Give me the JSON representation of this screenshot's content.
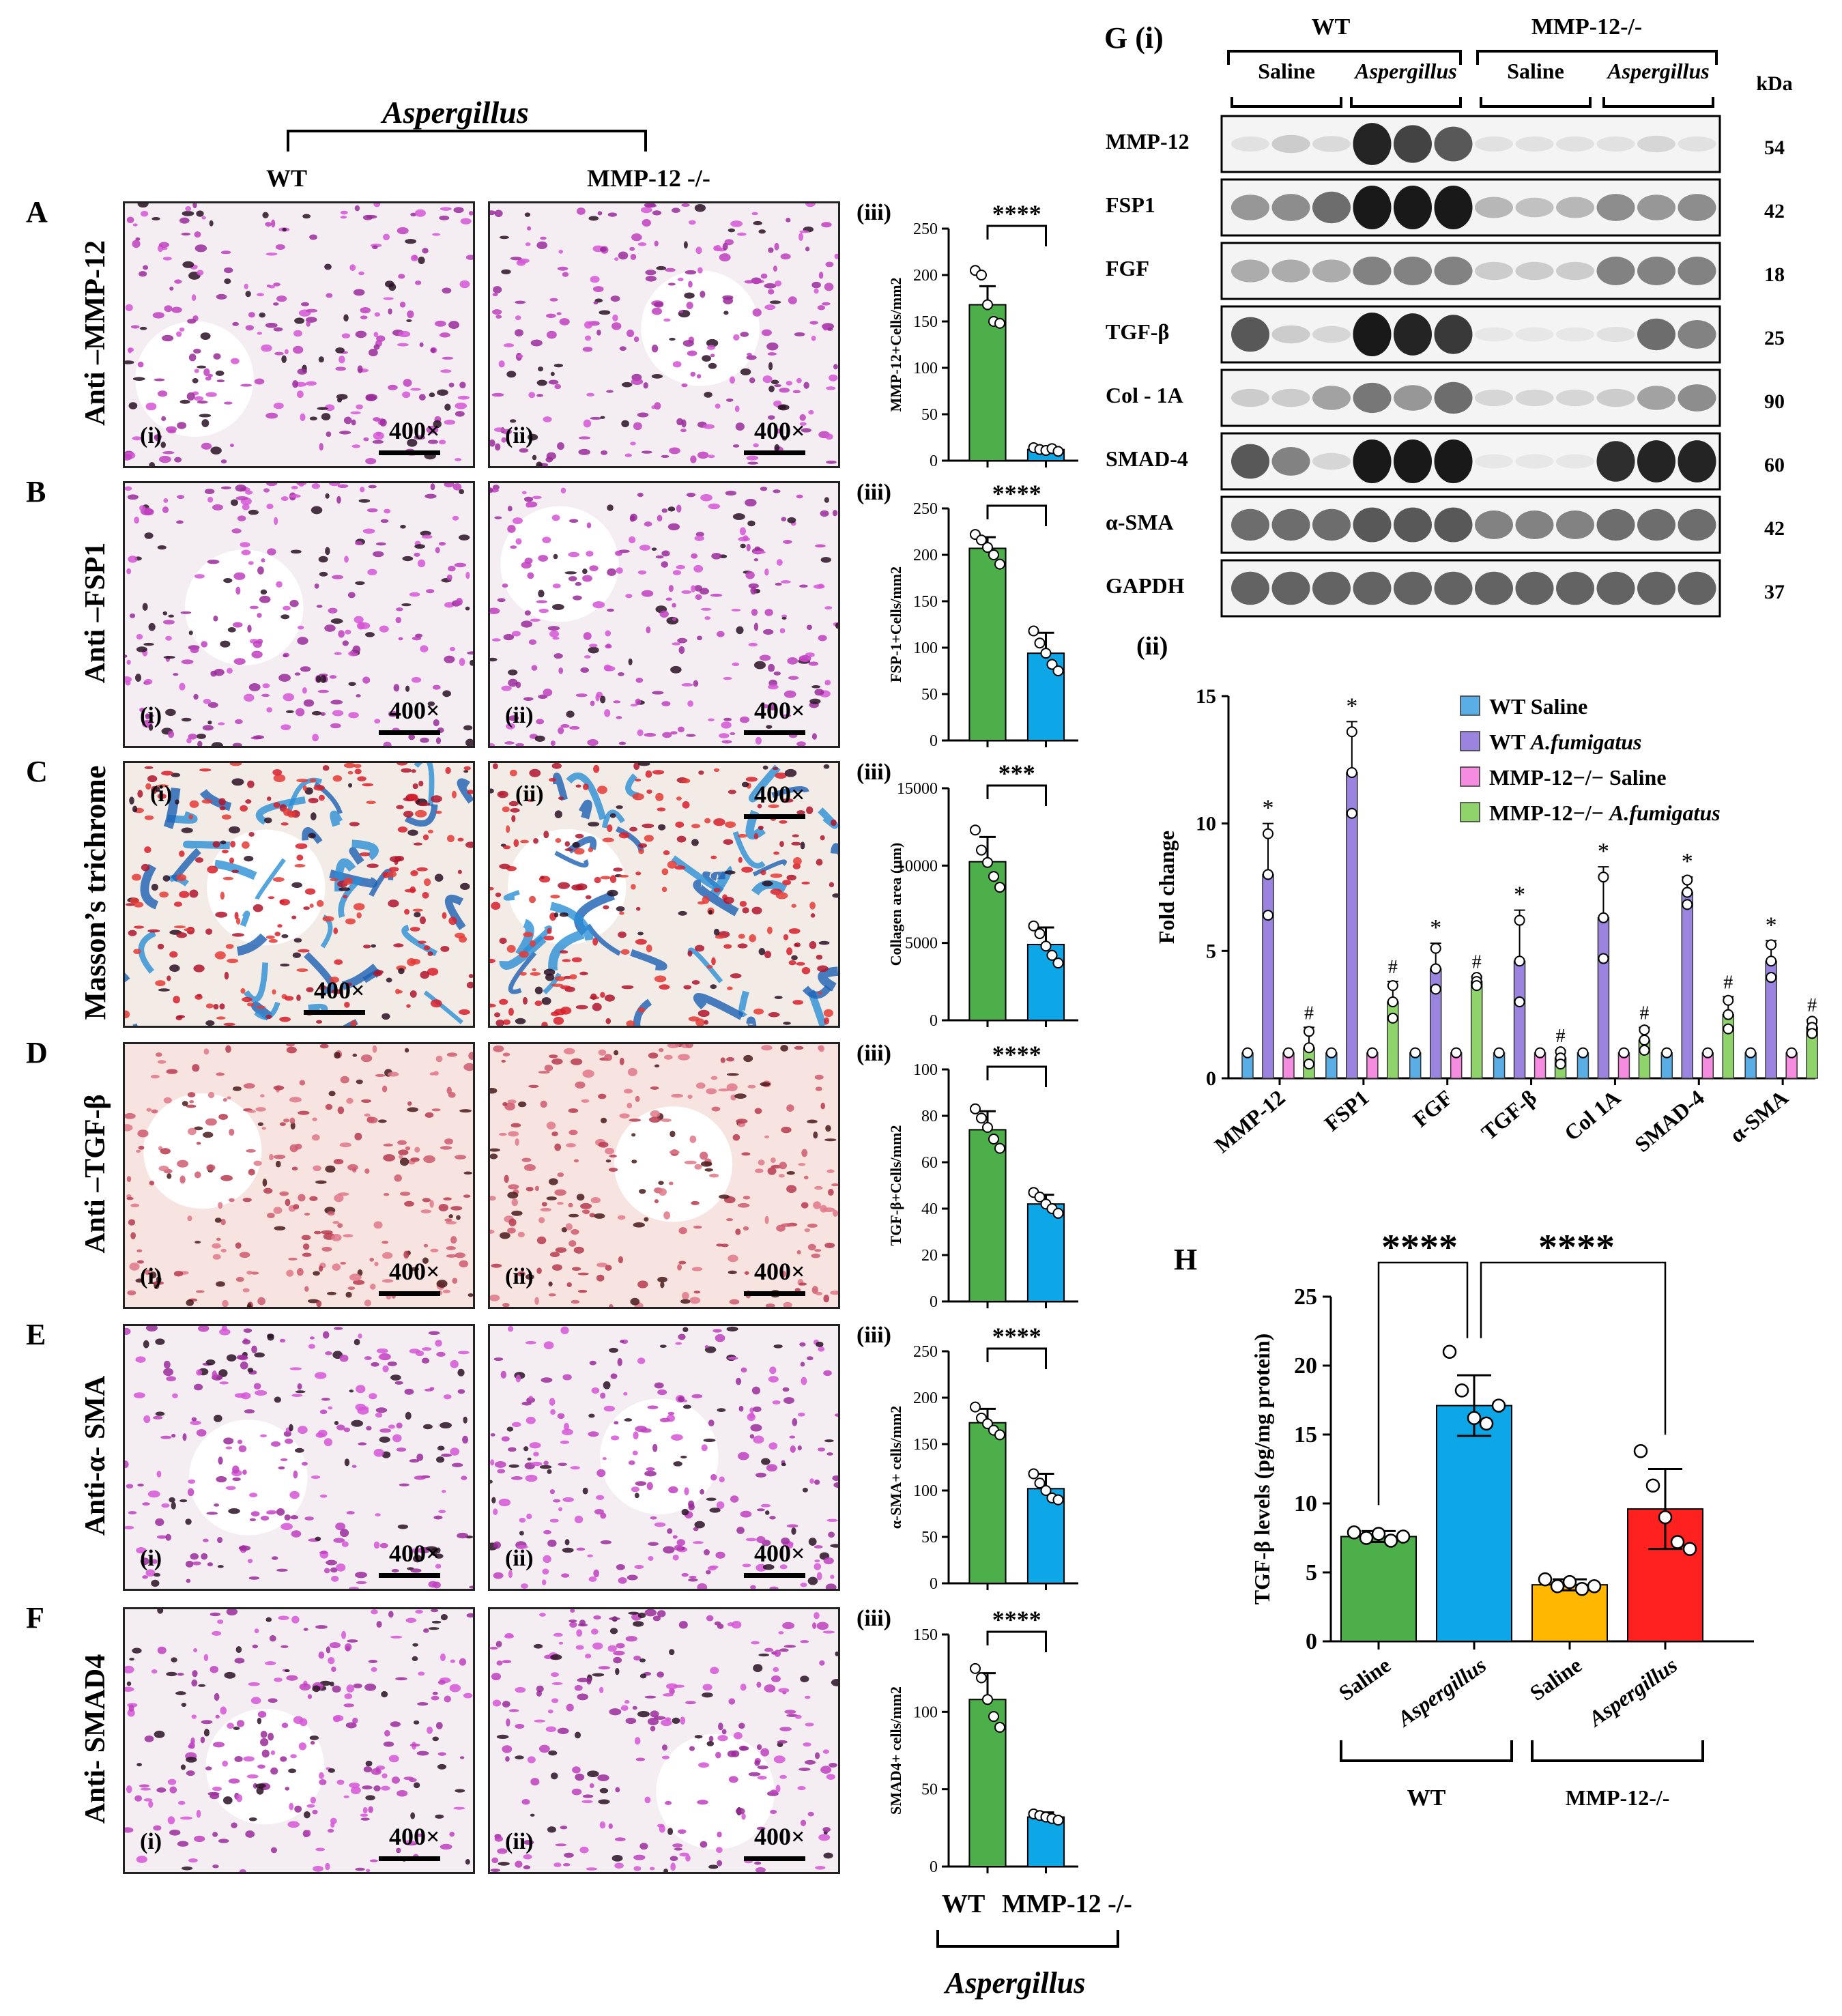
{
  "header": {
    "aspergillus": "Aspergillus",
    "wt": "WT",
    "mmp12ko": "MMP-12 -/-"
  },
  "rows": [
    {
      "letter": "A",
      "stain": "Anti –MMP-12",
      "sub_i": "(i)",
      "sub_ii": "(ii)",
      "sub_iii": "(iii)",
      "mag": "400×",
      "theme": "ihc-purple"
    },
    {
      "letter": "B",
      "stain": "Anti –FSP1",
      "sub_i": "(i)",
      "sub_ii": "(ii)",
      "sub_iii": "(iii)",
      "mag_i": "400×",
      "mag": "400×",
      "theme": "ihc-purple"
    },
    {
      "letter": "C",
      "stain": "Masson’s trichrome",
      "sub_i": "(i)",
      "sub_ii": "(ii)",
      "sub_iii": "(iii)",
      "mag": "400×",
      "theme": "trichrome"
    },
    {
      "letter": "D",
      "stain": "Anti –TGF-β",
      "sub_i": "(i)",
      "sub_ii": "(ii)",
      "sub_iii": "(iii)",
      "mag": "400×",
      "theme": "ihc-pink"
    },
    {
      "letter": "E",
      "stain": "Anti-α- SMA",
      "sub_i": "(i)",
      "sub_ii": "(ii)",
      "sub_iii": "(iii)",
      "mag": "400×",
      "theme": "ihc-purple"
    },
    {
      "letter": "F",
      "stain": "Anti- SMAD4",
      "sub_i": "(i)",
      "sub_ii": "(ii)",
      "sub_iii": "(iii)",
      "mag": "400×",
      "theme": "ihc-purple"
    }
  ],
  "bottom_axis": {
    "wt": "WT",
    "ko": "MMP-12 -/-",
    "aspergillus": "Aspergillus"
  },
  "colors": {
    "green": "#4daf4a",
    "blue": "#0da6e6",
    "yellow": "#ffb700",
    "red": "#ff2020",
    "wt_saline": "#5aaee6",
    "wt_af": "#9b84e0",
    "ko_saline": "#f58ce0",
    "ko_af": "#8fd46a"
  },
  "chart_data": [
    {
      "id": "A-iii",
      "type": "bar",
      "title": "",
      "ylabel": "MMP-12+Cells/mm2",
      "categories": [
        "WT",
        "MMP-12 -/-"
      ],
      "values": [
        168,
        12
      ],
      "err": [
        20,
        2
      ],
      "ylim": [
        0,
        250
      ],
      "yticks": [
        "0",
        "50",
        "100",
        "150",
        "200",
        "250"
      ],
      "points": [
        [
          205,
          200,
          168,
          150,
          148
        ],
        [
          14,
          12,
          11,
          13,
          10
        ]
      ],
      "significance": "****"
    },
    {
      "id": "B-iii",
      "type": "bar",
      "ylabel": "FSP-1+Cells/mm2",
      "categories": [
        "WT",
        "MMP-12 -/-"
      ],
      "values": [
        207,
        94
      ],
      "err": [
        12,
        22
      ],
      "ylim": [
        0,
        250
      ],
      "yticks": [
        "0",
        "50",
        "100",
        "150",
        "200",
        "250"
      ],
      "points": [
        [
          222,
          216,
          208,
          200,
          190
        ],
        [
          118,
          105,
          94,
          82,
          75
        ]
      ],
      "significance": "****"
    },
    {
      "id": "C-iii",
      "type": "bar",
      "ylabel": "Collagen area (μm)",
      "categories": [
        "WT",
        "MMP-12 -/-"
      ],
      "values": [
        10250,
        4900
      ],
      "err": [
        1600,
        1100
      ],
      "ylim": [
        0,
        15000
      ],
      "yticks": [
        "0",
        "5000",
        "10000",
        "15000"
      ],
      "points": [
        [
          12300,
          11000,
          10200,
          9300,
          8600
        ],
        [
          6100,
          5600,
          4800,
          4200,
          3700
        ]
      ],
      "significance": "***"
    },
    {
      "id": "D-iii",
      "type": "bar",
      "ylabel": "TGF-β+Cells/mm2",
      "categories": [
        "WT",
        "MMP-12 -/-"
      ],
      "values": [
        74,
        42
      ],
      "err": [
        8,
        4
      ],
      "ylim": [
        0,
        100
      ],
      "yticks": [
        "0",
        "20",
        "40",
        "60",
        "80",
        "100"
      ],
      "points": [
        [
          83,
          79,
          75,
          70,
          66
        ],
        [
          47,
          45,
          42,
          40,
          38
        ]
      ],
      "significance": "****"
    },
    {
      "id": "E-iii",
      "type": "bar",
      "ylabel": "α-SMA+ cells/mm2",
      "categories": [
        "WT",
        "MMP-12 -/-"
      ],
      "values": [
        173,
        102
      ],
      "err": [
        15,
        16
      ],
      "ylim": [
        0,
        250
      ],
      "yticks": [
        "0",
        "50",
        "100",
        "150",
        "200",
        "250"
      ],
      "points": [
        [
          190,
          178,
          172,
          165,
          160
        ],
        [
          118,
          108,
          100,
          92,
          90
        ]
      ],
      "significance": "****"
    },
    {
      "id": "F-iii",
      "type": "bar",
      "ylabel": "SMAD4+ cells/mm2",
      "categories": [
        "WT",
        "MMP-12 -/-"
      ],
      "values": [
        108,
        32
      ],
      "err": [
        17,
        3
      ],
      "ylim": [
        0,
        150
      ],
      "yticks": [
        "0",
        "50",
        "100",
        "150"
      ],
      "points": [
        [
          128,
          122,
          108,
          97,
          90
        ],
        [
          34,
          33,
          32,
          31,
          30
        ]
      ],
      "significance": "****"
    },
    {
      "id": "G-ii",
      "type": "bar",
      "ylabel": "Fold change",
      "categories": [
        "MMP-12",
        "FSP1",
        "FGF",
        "TGF-β",
        "Col 1A",
        "SMAD-4",
        "α-SMA"
      ],
      "series": [
        {
          "name": "WT Saline",
          "values": [
            1,
            1,
            1,
            1,
            1,
            1,
            1
          ]
        },
        {
          "name": "WT A.fumigatus",
          "values": [
            8,
            12,
            4.3,
            4.6,
            6.3,
            7.3,
            4.6
          ]
        },
        {
          "name": "MMP-12−/− Saline",
          "values": [
            1,
            1,
            1,
            1,
            1,
            1,
            1
          ]
        },
        {
          "name": "MMP-12−/− A.fumigatus",
          "values": [
            1.2,
            3,
            3.8,
            0.8,
            1.5,
            2.5,
            2
          ]
        }
      ],
      "err_af": [
        2,
        2,
        1,
        2,
        2,
        0.6,
        0.8
      ],
      "err_ko_af": [
        0.8,
        0.8,
        0.2,
        0.3,
        0.5,
        0.7,
        0.3
      ],
      "ylim": [
        0,
        15
      ],
      "yticks": [
        "0",
        "5",
        "10",
        "15"
      ],
      "star": "*",
      "hash": "#"
    },
    {
      "id": "H",
      "type": "bar",
      "ylabel": "TGF-β levels (pg/mg protein)",
      "categories": [
        "Saline",
        "Aspergillus",
        "Saline",
        "Aspergillus"
      ],
      "values": [
        7.6,
        17.1,
        4.1,
        9.6
      ],
      "err": [
        0.4,
        2.2,
        0.4,
        2.9
      ],
      "points": [
        [
          7.9,
          7.5,
          7.8,
          7.3,
          7.6
        ],
        [
          21,
          18.2,
          16.2,
          15.8,
          17.1
        ],
        [
          4.5,
          4,
          4.3,
          3.8,
          4
        ],
        [
          13.8,
          11.3,
          9,
          7.2,
          6.7
        ]
      ],
      "ylim": [
        0,
        25
      ],
      "yticks": [
        "0",
        "5",
        "10",
        "15",
        "20",
        "25"
      ],
      "groups": [
        "WT",
        "MMP-12-/-"
      ],
      "sig": [
        "****",
        "****"
      ]
    }
  ],
  "panel_labels": {
    "G": "G (i)",
    "G_ii": "(ii)",
    "H": "H"
  },
  "blot": {
    "wt": "WT",
    "ko": "MMP-12-/-",
    "saline": "Saline",
    "aspergillus": "Aspergillus",
    "kda": "kDa",
    "rows": [
      {
        "name": "MMP-12",
        "kda": "54"
      },
      {
        "name": "FSP1",
        "kda": "42"
      },
      {
        "name": "FGF",
        "kda": "18"
      },
      {
        "name": "TGF-β",
        "kda": "25"
      },
      {
        "name": "Col - 1A",
        "kda": "90"
      },
      {
        "name": "SMAD-4",
        "kda": "60"
      },
      {
        "name": "α-SMA",
        "kda": "42"
      },
      {
        "name": "GAPDH",
        "kda": "37"
      }
    ],
    "intensities": [
      [
        0.05,
        0.15,
        0.08,
        0.95,
        0.8,
        0.7,
        0.05,
        0.05,
        0.05,
        0.05,
        0.1,
        0.05
      ],
      [
        0.4,
        0.45,
        0.6,
        1,
        1,
        1,
        0.25,
        0.2,
        0.25,
        0.45,
        0.4,
        0.45
      ],
      [
        0.3,
        0.3,
        0.3,
        0.5,
        0.5,
        0.5,
        0.15,
        0.15,
        0.15,
        0.5,
        0.5,
        0.5
      ],
      [
        0.7,
        0.15,
        0.1,
        1,
        0.95,
        0.85,
        0.02,
        0.02,
        0.02,
        0.05,
        0.6,
        0.5
      ],
      [
        0.15,
        0.15,
        0.35,
        0.55,
        0.4,
        0.6,
        0.1,
        0.1,
        0.1,
        0.15,
        0.35,
        0.45
      ],
      [
        0.7,
        0.5,
        0.1,
        1,
        1,
        1,
        0.02,
        0.02,
        0.02,
        0.9,
        0.95,
        0.95
      ],
      [
        0.6,
        0.6,
        0.6,
        0.7,
        0.7,
        0.7,
        0.5,
        0.5,
        0.5,
        0.6,
        0.6,
        0.6
      ],
      [
        0.65,
        0.65,
        0.65,
        0.65,
        0.65,
        0.65,
        0.65,
        0.65,
        0.65,
        0.65,
        0.65,
        0.65
      ]
    ]
  }
}
